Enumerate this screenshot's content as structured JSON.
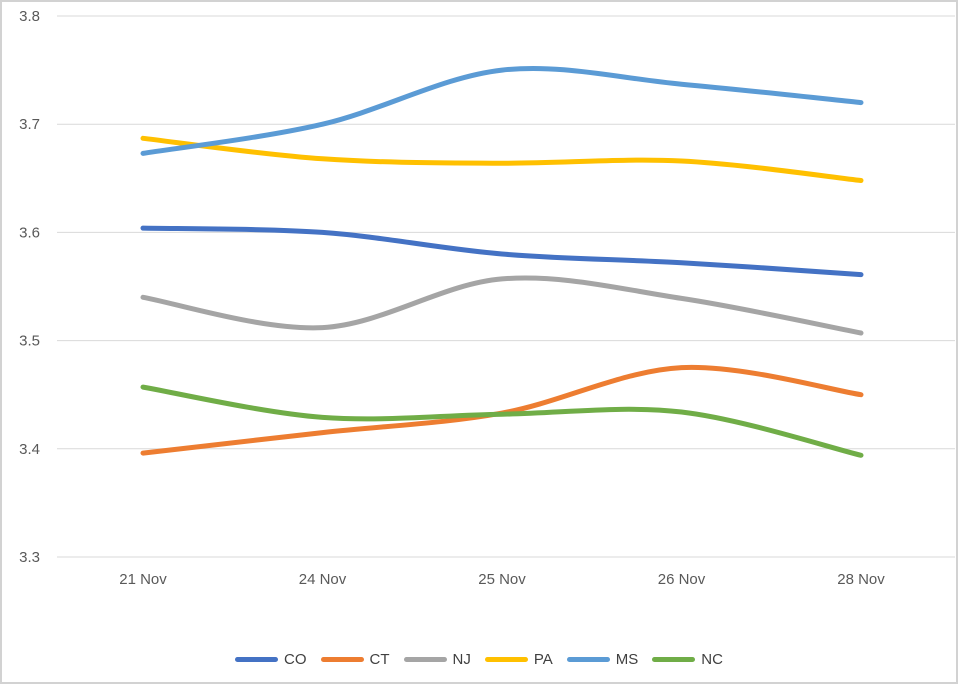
{
  "chart_data": {
    "type": "line",
    "smooth": true,
    "title": "",
    "xlabel": "",
    "ylabel": "",
    "categories": [
      "21 Nov",
      "24 Nov",
      "25 Nov",
      "26 Nov",
      "28 Nov"
    ],
    "series": [
      {
        "name": "CO",
        "color": "#4472C4",
        "values": [
          3.604,
          3.6,
          3.58,
          3.572,
          3.561
        ]
      },
      {
        "name": "CT",
        "color": "#ED7D31",
        "values": [
          3.396,
          3.415,
          3.433,
          3.475,
          3.45
        ]
      },
      {
        "name": "NJ",
        "color": "#A5A5A5",
        "values": [
          3.54,
          3.512,
          3.557,
          3.539,
          3.507
        ]
      },
      {
        "name": "PA",
        "color": "#FFC000",
        "values": [
          3.687,
          3.668,
          3.664,
          3.666,
          3.648
        ]
      },
      {
        "name": "MS",
        "color": "#5B9BD5",
        "values": [
          3.673,
          3.7,
          3.75,
          3.737,
          3.72
        ]
      },
      {
        "name": "NC",
        "color": "#70AD47",
        "values": [
          3.457,
          3.429,
          3.432,
          3.434,
          3.394
        ]
      }
    ],
    "ylim": [
      3.3,
      3.8
    ],
    "y_ticks": [
      "3.8",
      "3.7",
      "3.6",
      "3.5",
      "3.4",
      "3.3"
    ],
    "grid": true,
    "legend_position": "bottom"
  },
  "style": {
    "grid_color": "#D9D9D9",
    "axis_label_color": "#595959",
    "legend_text_color": "#404040",
    "frame_color": "#D2D2D2",
    "background": "#FFFFFF",
    "line_width": 5
  }
}
